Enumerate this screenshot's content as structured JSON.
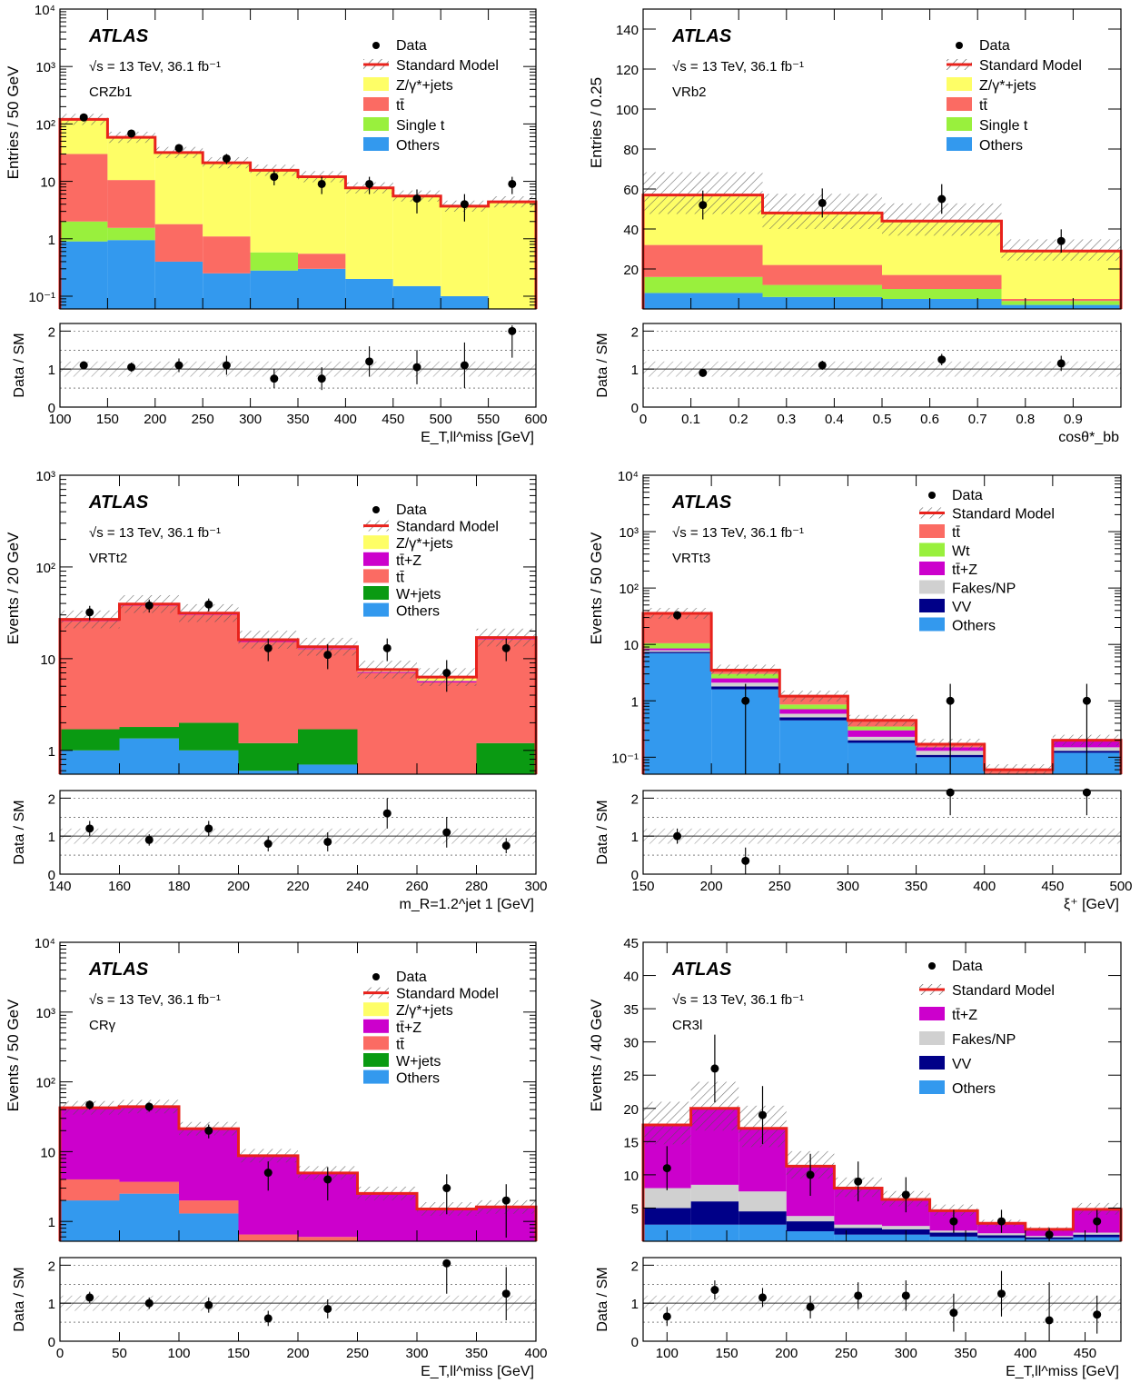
{
  "atlas_label": "ATLAS",
  "energy_label": "√s = 13 TeV, 36.1 fb⁻¹",
  "ratio_ylabel": "Data / SM",
  "colors": {
    "sm": "#e8221c",
    "zjets": "#fefe66",
    "ttbar": "#fb6b63",
    "single_t": "#99f03d",
    "others": "#3399ee",
    "ttz": "#cc00cc",
    "wjets": "#0a9a12",
    "wt": "#99f03d",
    "fakes": "#d0d0d0",
    "vv": "#000088"
  },
  "chart_data": [
    {
      "type": "bar",
      "region": "CRZb1",
      "ylabel": "Entries / 50 GeV",
      "xlabel": "E_T,ll^miss [GeV]",
      "log": true,
      "ylim": [
        0.06,
        10000
      ],
      "xlim": [
        100,
        600
      ],
      "edges": [
        100,
        150,
        200,
        250,
        300,
        350,
        400,
        450,
        500,
        550,
        600
      ],
      "ylabel_ticks": [
        "10⁻¹",
        "1",
        "10",
        "10²",
        "10³",
        "10⁴"
      ],
      "xticks": [
        100,
        150,
        200,
        250,
        300,
        350,
        400,
        450,
        500,
        550,
        600
      ],
      "legend": [
        "Data",
        "Standard Model",
        "Z/γ*+jets",
        "tt̄",
        "Single t",
        "Others"
      ],
      "stack": [
        {
          "name": "Others",
          "color_key": "others",
          "values": [
            0.9,
            0.95,
            0.4,
            0.25,
            0.28,
            0.3,
            0.2,
            0.15,
            0.1,
            0.0
          ]
        },
        {
          "name": "Single t",
          "color_key": "single_t",
          "values": [
            1.1,
            0.6,
            0.0,
            0.0,
            0.3,
            0.0,
            0.0,
            0.0,
            0.0,
            0.0
          ]
        },
        {
          "name": "tt̄",
          "color_key": "ttbar",
          "values": [
            28,
            9,
            1.4,
            0.85,
            0.0,
            0.25,
            0.0,
            0.0,
            0.0,
            0.0
          ]
        },
        {
          "name": "Z/γ*+jets",
          "color_key": "zjets",
          "values": [
            90,
            48,
            30,
            20,
            15,
            11.5,
            7.5,
            5.4,
            3.6,
            4.4
          ]
        }
      ],
      "data": {
        "x": [
          125,
          175,
          225,
          275,
          325,
          375,
          425,
          475,
          525,
          575
        ],
        "y": [
          130,
          68,
          38,
          25,
          12,
          9,
          9,
          5,
          4,
          9
        ]
      },
      "ratio": {
        "x": [
          125,
          175,
          225,
          275,
          325,
          375,
          425,
          475,
          525,
          575
        ],
        "y": [
          1.1,
          1.05,
          1.1,
          1.1,
          0.75,
          0.75,
          1.2,
          1.05,
          1.1,
          2.0
        ],
        "yerr": [
          0.1,
          0.12,
          0.18,
          0.25,
          0.25,
          0.3,
          0.4,
          0.45,
          0.6,
          0.7
        ]
      }
    },
    {
      "type": "bar",
      "region": "VRb2",
      "ylabel": "Entries / 0.25",
      "xlabel": "cosθ*_bb",
      "log": false,
      "ylim": [
        0,
        150
      ],
      "xlim": [
        0,
        1
      ],
      "edges": [
        0,
        0.25,
        0.5,
        0.75,
        1.0
      ],
      "yticks": [
        20,
        40,
        60,
        80,
        100,
        120,
        140
      ],
      "xticks": [
        0,
        0.1,
        0.2,
        0.3,
        0.4,
        0.5,
        0.6,
        0.7,
        0.8,
        0.9
      ],
      "legend": [
        "Data",
        "Standard Model",
        "Z/γ*+jets",
        "tt̄",
        "Single t",
        "Others"
      ],
      "stack": [
        {
          "name": "Others",
          "color_key": "others",
          "values": [
            8,
            6,
            5,
            2
          ]
        },
        {
          "name": "Single t",
          "color_key": "single_t",
          "values": [
            8,
            6,
            5,
            2
          ]
        },
        {
          "name": "tt̄",
          "color_key": "ttbar",
          "values": [
            16,
            10,
            7,
            1
          ]
        },
        {
          "name": "Z/γ*+jets",
          "color_key": "zjets",
          "values": [
            25,
            26,
            27,
            24
          ]
        }
      ],
      "data": {
        "x": [
          0.125,
          0.375,
          0.625,
          0.875
        ],
        "y": [
          52,
          53,
          55,
          34
        ]
      },
      "ratio": {
        "x": [
          0.125,
          0.375,
          0.625,
          0.875
        ],
        "y": [
          0.9,
          1.1,
          1.25,
          1.15
        ],
        "yerr": [
          0.1,
          0.12,
          0.15,
          0.2
        ]
      }
    },
    {
      "type": "bar",
      "region": "VRTt2",
      "ylabel": "Events / 20 GeV",
      "xlabel": "m_R=1.2^jet 1 [GeV]",
      "log": true,
      "ylim": [
        0.55,
        1000
      ],
      "xlim": [
        140,
        300
      ],
      "edges": [
        140,
        160,
        180,
        200,
        220,
        240,
        260,
        280,
        300
      ],
      "ylabel_ticks": [
        "1",
        "10",
        "10²",
        "10³"
      ],
      "xticks": [
        140,
        160,
        180,
        200,
        220,
        240,
        260,
        280,
        300
      ],
      "legend": [
        "Data",
        "Standard Model",
        "Z/γ*+jets",
        "tt̄+Z",
        "tt̄",
        "W+jets",
        "Others"
      ],
      "stack": [
        {
          "name": "Others",
          "color_key": "others",
          "values": [
            1.0,
            1.35,
            1.0,
            0.6,
            0.7,
            0.0,
            0.0,
            0.0
          ]
        },
        {
          "name": "W+jets",
          "color_key": "wjets",
          "values": [
            0.7,
            0.45,
            1.0,
            0.6,
            1.0,
            0.0,
            0.0,
            1.2
          ]
        },
        {
          "name": "tt̄",
          "color_key": "ttbar",
          "values": [
            24,
            36,
            28,
            14,
            11,
            7,
            5.5,
            15
          ]
        },
        {
          "name": "tt̄+Z",
          "color_key": "ttz",
          "values": [
            0.5,
            0.8,
            0.6,
            0.4,
            0.3,
            0.2,
            0.2,
            0.3
          ]
        },
        {
          "name": "Z/γ*+jets",
          "color_key": "zjets",
          "values": [
            0.6,
            0.8,
            0.8,
            0.5,
            0.5,
            0.4,
            0.6,
            0.5
          ]
        }
      ],
      "data": {
        "x": [
          150,
          170,
          190,
          210,
          230,
          250,
          270,
          290
        ],
        "y": [
          32,
          38,
          39,
          13,
          11,
          13,
          7,
          13
        ]
      },
      "ratio": {
        "x": [
          150,
          170,
          190,
          210,
          230,
          250,
          270,
          290
        ],
        "y": [
          1.2,
          0.9,
          1.2,
          0.8,
          0.85,
          1.6,
          1.1,
          0.75
        ],
        "yerr": [
          0.2,
          0.15,
          0.2,
          0.2,
          0.25,
          0.4,
          0.4,
          0.2
        ]
      }
    },
    {
      "type": "bar",
      "region": "VRTt3",
      "ylabel": "Events / 50 GeV",
      "xlabel": "ξ⁺ [GeV]",
      "log": true,
      "ylim": [
        0.05,
        10000
      ],
      "xlim": [
        150,
        500
      ],
      "edges": [
        150,
        200,
        250,
        300,
        350,
        400,
        450,
        500
      ],
      "ylabel_ticks": [
        "10⁻¹",
        "1",
        "10",
        "10²",
        "10³",
        "10⁴"
      ],
      "xticks": [
        150,
        200,
        250,
        300,
        350,
        400,
        450,
        500
      ],
      "legend": [
        "Data",
        "Standard Model",
        "tt̄",
        "Wt",
        "tt̄+Z",
        "Fakes/NP",
        "VV",
        "Others"
      ],
      "stack": [
        {
          "name": "Others",
          "color_key": "others",
          "values": [
            7,
            1.6,
            0.45,
            0.18,
            0.1,
            0.05,
            0.12
          ]
        },
        {
          "name": "VV",
          "color_key": "vv",
          "values": [
            0.4,
            0.2,
            0.06,
            0.02,
            0.01,
            0.0,
            0.01
          ]
        },
        {
          "name": "Fakes/NP",
          "color_key": "fakes",
          "values": [
            0.5,
            0.3,
            0.08,
            0.03,
            0.02,
            0.0,
            0.02
          ]
        },
        {
          "name": "tt̄+Z",
          "color_key": "ttz",
          "values": [
            0.6,
            0.4,
            0.12,
            0.07,
            0.02,
            0.0,
            0.05
          ]
        },
        {
          "name": "Wt",
          "color_key": "wt",
          "values": [
            2,
            0.5,
            0.15,
            0.05,
            0.0,
            0.0,
            0.0
          ]
        },
        {
          "name": "tt̄",
          "color_key": "ttbar",
          "values": [
            25,
            0.5,
            0.35,
            0.1,
            0.02,
            0.01,
            0.0
          ]
        }
      ],
      "data": {
        "x": [
          175,
          225,
          375,
          475
        ],
        "y": [
          33,
          1,
          1,
          1
        ]
      },
      "ratio": {
        "x": [
          175,
          225,
          375,
          475
        ],
        "y": [
          1.0,
          0.35,
          2.2,
          2.2
        ],
        "yerr": [
          0.2,
          0.35,
          0.6,
          0.6
        ]
      }
    },
    {
      "type": "bar",
      "region": "CRγ",
      "ylabel": "Events / 50 GeV",
      "xlabel": "E_T,ll^miss [GeV]",
      "log": true,
      "ylim": [
        0.52,
        10000
      ],
      "xlim": [
        0,
        400
      ],
      "edges": [
        0,
        50,
        100,
        150,
        200,
        250,
        300,
        350,
        400
      ],
      "ylabel_ticks": [
        "1",
        "10",
        "10²",
        "10³",
        "10⁴"
      ],
      "xticks": [
        0,
        50,
        100,
        150,
        200,
        250,
        300,
        350,
        400
      ],
      "legend": [
        "Data",
        "Standard Model",
        "Z/γ*+jets",
        "tt̄+Z",
        "tt̄",
        "W+jets",
        "Others"
      ],
      "stack": [
        {
          "name": "Others",
          "color_key": "others",
          "values": [
            2,
            2.5,
            1.3,
            0.0,
            0.0,
            0.0,
            0.0,
            0.0
          ]
        },
        {
          "name": "W+jets",
          "color_key": "wjets",
          "values": [
            0,
            0,
            0,
            0,
            0,
            0,
            0,
            0
          ]
        },
        {
          "name": "tt̄",
          "color_key": "ttbar",
          "values": [
            2,
            1.2,
            0.7,
            0.65,
            0.6,
            0.0,
            0.0,
            0.0
          ]
        },
        {
          "name": "tt̄+Z",
          "color_key": "ttz",
          "values": [
            38,
            40,
            19,
            8,
            4.3,
            2.5,
            1.5,
            1.6
          ]
        },
        {
          "name": "Z/γ*+jets",
          "color_key": "zjets",
          "values": [
            0.5,
            0.5,
            0.3,
            0.1,
            0.05,
            0.02,
            0.01,
            0.01
          ]
        }
      ],
      "data": {
        "x": [
          25,
          75,
          125,
          175,
          225,
          325,
          375
        ],
        "y": [
          47,
          44,
          20,
          5,
          4,
          3,
          2
        ]
      },
      "ratio": {
        "x": [
          25,
          75,
          125,
          175,
          225,
          325,
          375
        ],
        "y": [
          1.15,
          1.0,
          0.95,
          0.6,
          0.85,
          2.05,
          1.25
        ],
        "yerr": [
          0.15,
          0.15,
          0.2,
          0.2,
          0.25,
          0.8,
          0.7
        ]
      }
    },
    {
      "type": "bar",
      "region": "CR3l",
      "ylabel": "Events / 40 GeV",
      "xlabel": "E_T,ll^miss [GeV]",
      "log": false,
      "ylim": [
        0,
        45
      ],
      "xlim": [
        80,
        480
      ],
      "edges": [
        80,
        120,
        160,
        200,
        240,
        280,
        320,
        360,
        400,
        440,
        480
      ],
      "yticks": [
        5,
        10,
        15,
        20,
        25,
        30,
        35,
        40,
        45
      ],
      "xticks": [
        100,
        150,
        200,
        250,
        300,
        350,
        400,
        450
      ],
      "legend": [
        "Data",
        "Standard Model",
        "tt̄+Z",
        "Fakes/NP",
        "VV",
        "Others"
      ],
      "stack": [
        {
          "name": "Others",
          "color_key": "others",
          "values": [
            2.5,
            2.5,
            2.5,
            1.5,
            1,
            1,
            0.7,
            0.5,
            0.3,
            0.6
          ]
        },
        {
          "name": "VV",
          "color_key": "vv",
          "values": [
            2.5,
            3.5,
            2,
            1.5,
            1,
            0.8,
            0.6,
            0.4,
            0.3,
            0.4
          ]
        },
        {
          "name": "Fakes/NP",
          "color_key": "fakes",
          "values": [
            3,
            2.5,
            3,
            0.8,
            0.5,
            0.5,
            0.3,
            0.3,
            0.2,
            0.3
          ]
        },
        {
          "name": "tt̄+Z",
          "color_key": "ttz",
          "values": [
            9.5,
            11.5,
            9.5,
            7.5,
            5.5,
            4,
            3,
            1.5,
            1,
            3.5
          ]
        }
      ],
      "data": {
        "x": [
          100,
          140,
          180,
          220,
          260,
          300,
          340,
          380,
          420,
          460
        ],
        "y": [
          11,
          26,
          19,
          10,
          9,
          7,
          3,
          3,
          1,
          3
        ]
      },
      "ratio": {
        "x": [
          100,
          140,
          180,
          220,
          260,
          300,
          340,
          380,
          420,
          460
        ],
        "y": [
          0.65,
          1.35,
          1.15,
          0.9,
          1.2,
          1.2,
          0.75,
          1.25,
          0.55,
          0.7
        ],
        "yerr": [
          0.25,
          0.25,
          0.25,
          0.3,
          0.35,
          0.4,
          0.5,
          0.6,
          1.0,
          0.5
        ]
      }
    }
  ]
}
